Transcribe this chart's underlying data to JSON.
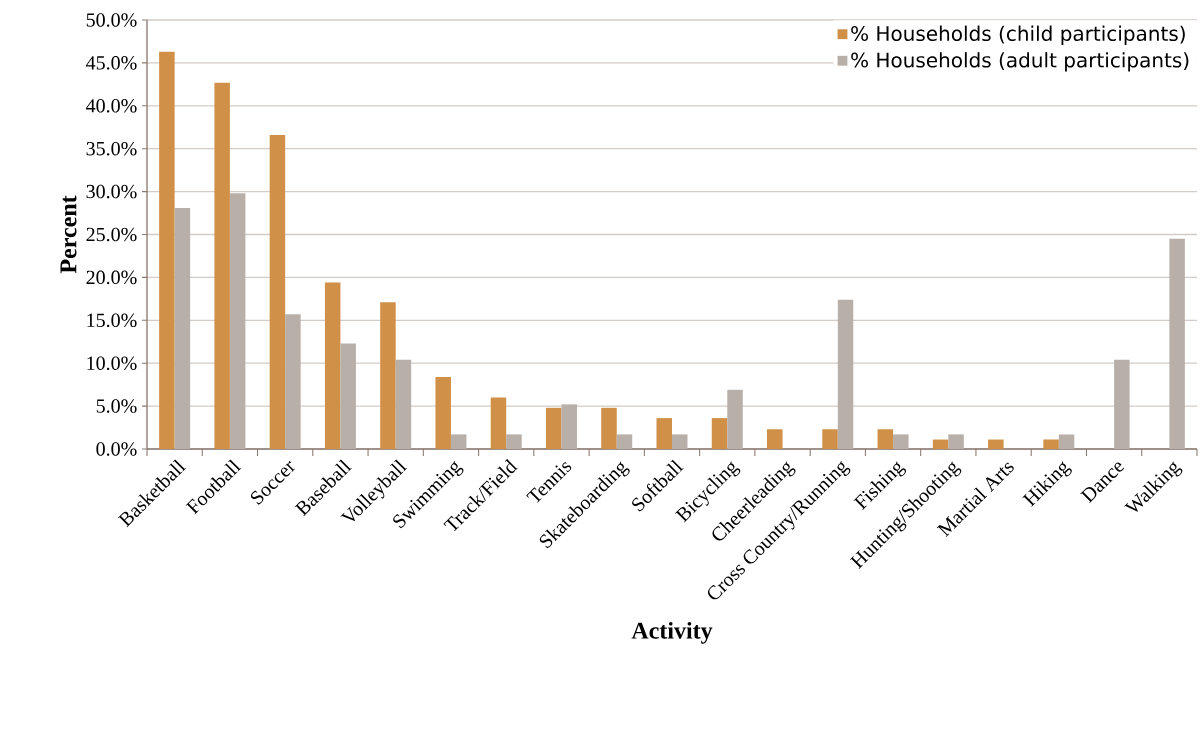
{
  "chart_data": {
    "type": "bar",
    "xlabel": "Activity",
    "ylabel": "Percent",
    "categories": [
      "Basketball",
      "Football",
      "Soccer",
      "Baseball",
      "Volleyball",
      "Swimming",
      "Track/Field",
      "Tennis",
      "Skateboarding",
      "Softball",
      "Bicycling",
      "Cheerleading",
      "Cross Country/Running",
      "Fishing",
      "Hunting/Shooting",
      "Martial Arts",
      "Hiking",
      "Dance",
      "Walking"
    ],
    "series": [
      {
        "name": "% Households (child participants)",
        "color": "#d09048",
        "values": [
          46.3,
          42.7,
          36.6,
          19.4,
          17.1,
          8.4,
          6.0,
          4.8,
          4.8,
          3.6,
          3.6,
          2.3,
          2.3,
          2.3,
          1.1,
          1.1,
          1.1,
          null,
          null
        ]
      },
      {
        "name": "% Households (adult participants)",
        "color": "#b9afa9",
        "values": [
          28.1,
          29.8,
          15.7,
          12.3,
          10.4,
          1.7,
          1.7,
          5.2,
          1.7,
          1.7,
          6.9,
          null,
          17.4,
          1.7,
          1.7,
          null,
          1.7,
          10.4,
          24.5
        ]
      }
    ],
    "ylim": [
      0,
      50
    ],
    "yticks": [
      {
        "value": 0,
        "label": "0.0%"
      },
      {
        "value": 5,
        "label": "5.0%"
      },
      {
        "value": 10,
        "label": "10.0%"
      },
      {
        "value": 15,
        "label": "15.0%"
      },
      {
        "value": 20,
        "label": "20.0%"
      },
      {
        "value": 25,
        "label": "25.0%"
      },
      {
        "value": 30,
        "label": "30.0%"
      },
      {
        "value": 35,
        "label": "35.0%"
      },
      {
        "value": 40,
        "label": "40.0%"
      },
      {
        "value": 45,
        "label": "45.0%"
      },
      {
        "value": 50,
        "label": "50.0%"
      }
    ],
    "grid": "y",
    "legend": "top right"
  }
}
